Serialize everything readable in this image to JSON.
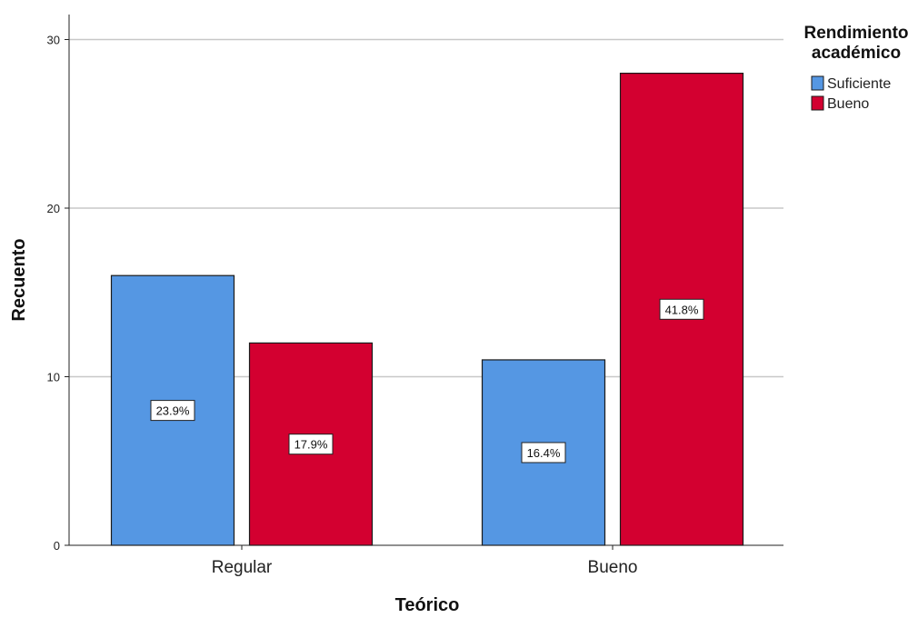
{
  "chart_data": {
    "type": "bar",
    "categories": [
      "Regular",
      "Bueno"
    ],
    "series": [
      {
        "name": "Suficiente",
        "color": "#5597E3",
        "values": [
          16,
          11
        ],
        "labels": [
          "23.9%",
          "16.4%"
        ]
      },
      {
        "name": "Bueno",
        "color": "#D30030",
        "values": [
          12,
          28
        ],
        "labels": [
          "17.9%",
          "41.8%"
        ]
      }
    ],
    "xlabel": "Teórico",
    "ylabel": "Recuento",
    "ylim": [
      0,
      30
    ],
    "yticks": [
      0,
      10,
      20,
      30
    ],
    "grid": true,
    "legend": {
      "title_lines": [
        "Rendimiento",
        "académico"
      ],
      "position": "top-right"
    }
  }
}
